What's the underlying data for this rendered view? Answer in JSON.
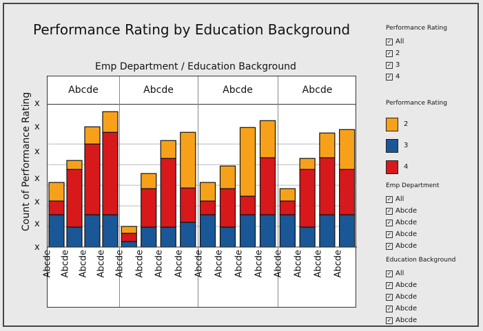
{
  "title": "Performance Rating by Education Background",
  "x_header": "Emp Department / Education Background",
  "y_label": "Count of Performance Rating",
  "y_ticks": [
    "x",
    "x",
    "x",
    "x",
    "x",
    "x",
    "x"
  ],
  "panels": [
    "Abcde",
    "Abcde",
    "Abcde",
    "Abcde"
  ],
  "colors": {
    "2": "#f7a11a",
    "3": "#1a5796",
    "4": "#d7191c"
  },
  "chart_data": {
    "type": "bar",
    "stacked": true,
    "panels": [
      {
        "name": "Abcde",
        "categories": [
          "Abcde",
          "Abcde",
          "Abcde",
          "Abcde"
        ],
        "series": [
          {
            "name": "3",
            "values": [
              47,
              29,
              47,
              47
            ]
          },
          {
            "name": "4",
            "values": [
              20,
              84,
              103,
              120
            ]
          },
          {
            "name": "2",
            "values": [
              27,
              13,
              25,
              30
            ]
          }
        ]
      },
      {
        "name": "Abcde",
        "categories": [
          "Abcde",
          "Abcde",
          "Abcde",
          "Abcde"
        ],
        "series": [
          {
            "name": "3",
            "values": [
              8,
              29,
              29,
              36
            ]
          },
          {
            "name": "4",
            "values": [
              12,
              56,
              100,
              50
            ]
          },
          {
            "name": "2",
            "values": [
              10,
              22,
              26,
              81
            ]
          }
        ]
      },
      {
        "name": "Abcde",
        "categories": [
          "Abcde",
          "Abcde",
          "Abcde",
          "Abcde"
        ],
        "series": [
          {
            "name": "3",
            "values": [
              47,
              29,
              47,
              47
            ]
          },
          {
            "name": "4",
            "values": [
              20,
              56,
              27,
              83
            ]
          },
          {
            "name": "2",
            "values": [
              27,
              33,
              100,
              54
            ]
          }
        ]
      },
      {
        "name": "Abcde",
        "categories": [
          "Abcde",
          "Abcde",
          "Abcde",
          "Abcde"
        ],
        "series": [
          {
            "name": "3",
            "values": [
              47,
              29,
              47,
              47
            ]
          },
          {
            "name": "4",
            "values": [
              20,
              84,
              83,
              66
            ]
          },
          {
            "name": "2",
            "values": [
              18,
              16,
              36,
              58
            ]
          }
        ]
      }
    ],
    "xlabel": "Emp Department / Education Background",
    "ylabel": "Count of Performance Rating",
    "ylim": [
      0,
      200
    ]
  },
  "legend": {
    "filter1": {
      "title": "Performance Rating",
      "items": [
        "All",
        "2",
        "3",
        "4"
      ]
    },
    "colors": {
      "title": "Performance Rating",
      "items": [
        {
          "label": "2",
          "key": "2"
        },
        {
          "label": "3",
          "key": "3"
        },
        {
          "label": "4",
          "key": "4"
        }
      ]
    },
    "filter2": {
      "title": "Emp Department",
      "items": [
        "All",
        "Abcde",
        "Abcde",
        "Abcde",
        "Abcde"
      ]
    },
    "filter3": {
      "title": "Education Background",
      "items": [
        "All",
        "Abcde",
        "Abcde",
        "Abcde",
        "Abcde"
      ]
    }
  }
}
